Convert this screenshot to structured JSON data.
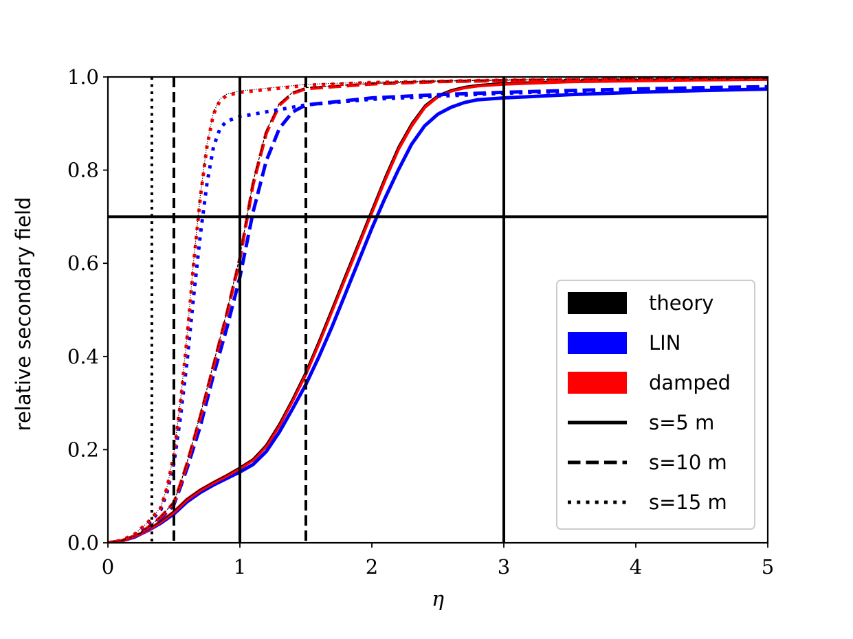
{
  "chart_data": {
    "type": "line",
    "title": "",
    "xlabel": "η",
    "ylabel": "relative secondary field",
    "xlim": [
      0,
      5
    ],
    "ylim": [
      0,
      1
    ],
    "x_ticks": [
      "0",
      "1",
      "2",
      "3",
      "4",
      "5"
    ],
    "y_ticks": [
      "0.0",
      "0.2",
      "0.4",
      "0.6",
      "0.8",
      "1.0"
    ],
    "grid": false,
    "legend_position": "lower-right",
    "legend": [
      {
        "label": "theory",
        "color": "#000000",
        "style": "patch"
      },
      {
        "label": "LIN",
        "color": "#0000ff",
        "style": "patch"
      },
      {
        "label": "damped",
        "color": "#ff0000",
        "style": "patch"
      },
      {
        "label": "s=5 m",
        "color": "#000000",
        "style": "solid"
      },
      {
        "label": "s=10 m",
        "color": "#000000",
        "style": "dashed"
      },
      {
        "label": "s=15 m",
        "color": "#000000",
        "style": "dotted"
      }
    ],
    "reference_lines": {
      "horizontal": [
        {
          "y": 0.7,
          "color": "#000000",
          "style": "solid"
        }
      ],
      "vertical": [
        {
          "x": 1.0,
          "style": "solid"
        },
        {
          "x": 3.0,
          "style": "solid"
        },
        {
          "x": 0.5,
          "style": "dashed"
        },
        {
          "x": 1.5,
          "style": "dashed"
        },
        {
          "x": 0.333,
          "style": "dotted"
        }
      ]
    },
    "series": [
      {
        "group": "LIN",
        "color": "#0000ff",
        "style": "solid",
        "x": [
          0,
          0.1,
          0.2,
          0.3,
          0.4,
          0.5,
          0.6,
          0.7,
          0.8,
          0.9,
          1.0,
          1.1,
          1.2,
          1.3,
          1.4,
          1.5,
          1.6,
          1.7,
          1.8,
          1.9,
          2.0,
          2.1,
          2.2,
          2.3,
          2.4,
          2.5,
          2.6,
          2.7,
          2.8,
          3.0,
          3.5,
          4.0,
          4.5,
          5.0
        ],
        "y": [
          0,
          0.004,
          0.012,
          0.026,
          0.042,
          0.062,
          0.088,
          0.108,
          0.124,
          0.138,
          0.152,
          0.168,
          0.196,
          0.238,
          0.288,
          0.34,
          0.4,
          0.465,
          0.535,
          0.605,
          0.675,
          0.74,
          0.8,
          0.855,
          0.895,
          0.92,
          0.935,
          0.945,
          0.951,
          0.955,
          0.962,
          0.967,
          0.971,
          0.974
        ]
      },
      {
        "group": "damped",
        "color": "#ff0000",
        "style": "solid",
        "x": [
          0,
          0.1,
          0.2,
          0.3,
          0.4,
          0.5,
          0.6,
          0.7,
          0.8,
          0.9,
          1.0,
          1.1,
          1.2,
          1.3,
          1.4,
          1.5,
          1.6,
          1.7,
          1.8,
          1.9,
          2.0,
          2.1,
          2.2,
          2.3,
          2.4,
          2.5,
          2.6,
          2.7,
          2.8,
          3.0,
          3.5,
          4.0,
          4.5,
          5.0
        ],
        "y": [
          0,
          0.004,
          0.013,
          0.027,
          0.045,
          0.066,
          0.093,
          0.113,
          0.129,
          0.144,
          0.16,
          0.178,
          0.208,
          0.253,
          0.306,
          0.363,
          0.43,
          0.5,
          0.57,
          0.64,
          0.71,
          0.78,
          0.845,
          0.895,
          0.935,
          0.958,
          0.97,
          0.977,
          0.981,
          0.985,
          0.99,
          0.992,
          0.994,
          0.995
        ]
      },
      {
        "group": "theory",
        "color": "#000000",
        "style": "solid",
        "width": 1.2,
        "x": [
          0,
          0.1,
          0.2,
          0.3,
          0.4,
          0.5,
          0.6,
          0.7,
          0.8,
          0.9,
          1.0,
          1.1,
          1.2,
          1.3,
          1.4,
          1.5,
          1.6,
          1.7,
          1.8,
          1.9,
          2.0,
          2.1,
          2.2,
          2.3,
          2.4,
          2.5,
          2.6,
          2.7,
          2.8,
          3.0,
          3.5,
          4.0,
          4.5,
          5.0
        ],
        "y": [
          0,
          0.004,
          0.013,
          0.028,
          0.046,
          0.068,
          0.095,
          0.115,
          0.131,
          0.146,
          0.163,
          0.181,
          0.212,
          0.258,
          0.312,
          0.37,
          0.437,
          0.507,
          0.578,
          0.648,
          0.718,
          0.788,
          0.852,
          0.902,
          0.94,
          0.962,
          0.973,
          0.98,
          0.984,
          0.988,
          0.992,
          0.994,
          0.995,
          0.996
        ]
      },
      {
        "group": "LIN",
        "color": "#0000ff",
        "style": "dashed",
        "x": [
          0,
          0.1,
          0.2,
          0.3,
          0.4,
          0.5,
          0.55,
          0.6,
          0.7,
          0.8,
          0.9,
          1.0,
          1.05,
          1.1,
          1.2,
          1.3,
          1.4,
          1.5,
          2.0,
          2.5,
          3.0,
          3.5,
          4.0,
          4.5,
          5.0
        ],
        "y": [
          0,
          0.004,
          0.013,
          0.03,
          0.052,
          0.082,
          0.12,
          0.16,
          0.25,
          0.36,
          0.46,
          0.57,
          0.64,
          0.71,
          0.82,
          0.89,
          0.925,
          0.94,
          0.955,
          0.962,
          0.967,
          0.971,
          0.974,
          0.977,
          0.979
        ]
      },
      {
        "group": "damped",
        "color": "#ff0000",
        "style": "dashed",
        "x": [
          0,
          0.1,
          0.2,
          0.3,
          0.4,
          0.5,
          0.55,
          0.6,
          0.7,
          0.8,
          0.9,
          1.0,
          1.05,
          1.1,
          1.2,
          1.3,
          1.4,
          1.5,
          2.0,
          2.5,
          3.0,
          3.5,
          4.0,
          4.5,
          5.0
        ],
        "y": [
          0,
          0.004,
          0.014,
          0.032,
          0.055,
          0.086,
          0.126,
          0.17,
          0.27,
          0.38,
          0.49,
          0.61,
          0.69,
          0.77,
          0.88,
          0.94,
          0.965,
          0.975,
          0.985,
          0.99,
          0.992,
          0.994,
          0.995,
          0.996,
          0.996
        ]
      },
      {
        "group": "theory",
        "color": "#000000",
        "style": "dashed",
        "width": 1.2,
        "x": [
          0,
          0.1,
          0.2,
          0.3,
          0.4,
          0.5,
          0.55,
          0.6,
          0.7,
          0.8,
          0.9,
          1.0,
          1.05,
          1.1,
          1.2,
          1.3,
          1.4,
          1.5,
          2.0,
          2.5,
          3.0,
          3.5,
          4.0,
          4.5,
          5.0
        ],
        "y": [
          0,
          0.004,
          0.014,
          0.032,
          0.056,
          0.087,
          0.128,
          0.173,
          0.275,
          0.385,
          0.495,
          0.615,
          0.695,
          0.775,
          0.885,
          0.943,
          0.967,
          0.977,
          0.986,
          0.991,
          0.993,
          0.995,
          0.996,
          0.996,
          0.997
        ]
      },
      {
        "group": "LIN",
        "color": "#0000ff",
        "style": "dotted",
        "x": [
          0,
          0.1,
          0.2,
          0.3,
          0.4,
          0.45,
          0.5,
          0.55,
          0.6,
          0.65,
          0.7,
          0.75,
          0.8,
          0.85,
          0.9,
          1.0,
          1.5,
          2.0,
          3.0,
          4.0,
          5.0
        ],
        "y": [
          0,
          0.005,
          0.017,
          0.04,
          0.07,
          0.11,
          0.17,
          0.27,
          0.39,
          0.53,
          0.66,
          0.77,
          0.85,
          0.89,
          0.905,
          0.915,
          0.94,
          0.952,
          0.965,
          0.973,
          0.978
        ]
      },
      {
        "group": "damped",
        "color": "#ff0000",
        "style": "dotted",
        "x": [
          0,
          0.1,
          0.2,
          0.3,
          0.4,
          0.45,
          0.5,
          0.55,
          0.6,
          0.65,
          0.7,
          0.75,
          0.8,
          0.85,
          0.9,
          1.0,
          1.5,
          2.0,
          3.0,
          4.0,
          5.0
        ],
        "y": [
          0,
          0.005,
          0.018,
          0.043,
          0.075,
          0.12,
          0.19,
          0.3,
          0.44,
          0.6,
          0.74,
          0.85,
          0.92,
          0.95,
          0.96,
          0.967,
          0.982,
          0.988,
          0.993,
          0.995,
          0.996
        ]
      },
      {
        "group": "theory",
        "color": "#000000",
        "style": "dotted",
        "width": 1.2,
        "x": [
          0,
          0.1,
          0.2,
          0.3,
          0.4,
          0.45,
          0.5,
          0.55,
          0.6,
          0.65,
          0.7,
          0.75,
          0.8,
          0.85,
          0.9,
          1.0,
          1.5,
          2.0,
          3.0,
          4.0,
          5.0
        ],
        "y": [
          0,
          0.005,
          0.018,
          0.043,
          0.076,
          0.122,
          0.193,
          0.305,
          0.447,
          0.607,
          0.746,
          0.855,
          0.924,
          0.953,
          0.963,
          0.97,
          0.984,
          0.989,
          0.994,
          0.996,
          0.997
        ]
      }
    ]
  }
}
